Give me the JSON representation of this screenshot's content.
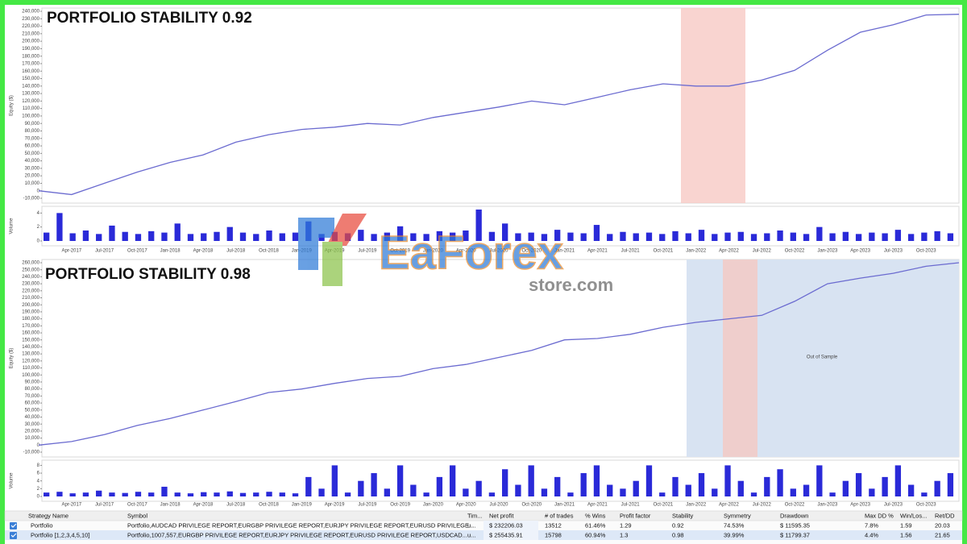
{
  "chart_data": [
    {
      "type": "line",
      "title": "PORTFOLIO STABILITY 0.92",
      "ylabel": "Equity ($)",
      "color": "#6b6bd0",
      "categories": [
        null,
        "Apr-2017",
        "Jul-2017",
        "Oct-2017",
        "Jan-2018",
        "Apr-2018",
        "Jul-2018",
        "Oct-2018",
        "Jan-2019",
        "Apr-2019",
        "Jul-2019",
        "Oct-2019",
        "Jan-2020",
        "Apr-2020",
        "Jul-2020",
        "Oct-2020",
        "Jan-2021",
        "Apr-2021",
        "Jul-2021",
        "Oct-2021",
        "Jan-2022",
        "Apr-2022",
        "Jul-2022",
        "Oct-2022",
        "Jan-2023",
        "Apr-2023",
        "Jul-2023",
        "Oct-2023",
        null
      ],
      "values": [
        0,
        -5000,
        10000,
        25000,
        38000,
        48000,
        65000,
        75000,
        82000,
        85000,
        90000,
        88000,
        98000,
        105000,
        112000,
        120000,
        115000,
        125000,
        135000,
        143000,
        140000,
        140000,
        148000,
        161000,
        188000,
        212000,
        222000,
        235000,
        236000
      ],
      "ylim": [
        -10000,
        240000
      ],
      "yticks": [
        {
          "value": -10000,
          "label": "-10,000"
        },
        0,
        {
          "value": 10000,
          "label": "10,000"
        },
        {
          "value": 20000,
          "label": "20,000"
        },
        {
          "value": 30000,
          "label": "30,000"
        },
        {
          "value": 40000,
          "label": "40,000"
        },
        {
          "value": 50000,
          "label": "50,000"
        },
        {
          "value": 60000,
          "label": "60,000"
        },
        {
          "value": 70000,
          "label": "70,000"
        },
        {
          "value": 80000,
          "label": "80,000"
        },
        {
          "value": 90000,
          "label": "90,000"
        },
        {
          "value": 100000,
          "label": "100,000"
        },
        {
          "value": 110000,
          "label": "110,000"
        },
        {
          "value": 120000,
          "label": "120,000"
        },
        {
          "value": 130000,
          "label": "130,000"
        },
        {
          "value": 140000,
          "label": "140,000"
        },
        {
          "value": 150000,
          "label": "150,000"
        },
        {
          "value": 160000,
          "label": "160,000"
        },
        {
          "value": 170000,
          "label": "170,000"
        },
        {
          "value": 180000,
          "label": "180,000"
        },
        {
          "value": 190000,
          "label": "190,000"
        },
        {
          "value": 200000,
          "label": "200,000"
        },
        {
          "value": 210000,
          "label": "210,000"
        },
        {
          "value": 220000,
          "label": "220,000"
        },
        {
          "value": 230000,
          "label": "230,000"
        },
        {
          "value": 240000,
          "label": "240,000"
        }
      ],
      "grid": false,
      "volume": {
        "type": "bar",
        "ylabel": "Volume",
        "color": "#2a2ad8",
        "ylim": [
          0,
          4.5
        ],
        "yticks": [
          0,
          2,
          4
        ],
        "values": [
          1.2,
          4,
          1.1,
          1.5,
          1,
          2.2,
          1.3,
          1,
          1.4,
          1.2,
          2.5,
          1,
          1.1,
          1.3,
          2,
          1.2,
          1,
          1.5,
          1.1,
          1.2,
          2.8,
          1,
          1.3,
          1.1,
          1.6,
          1,
          1.2,
          2.1,
          1.1,
          1,
          1.4,
          1.2,
          1.5,
          4.5,
          1.3,
          2.5,
          1.1,
          1.2,
          1,
          1.6,
          1.2,
          1.1,
          2.3,
          1,
          1.3,
          1.1,
          1.2,
          1,
          1.4,
          1.1,
          1.6,
          1,
          1.2,
          1.3,
          1,
          1.1,
          1.5,
          1.2,
          1,
          2,
          1.1,
          1.3,
          1,
          1.2,
          1.1,
          1.6,
          1,
          1.2,
          1.4,
          1.1
        ]
      }
    },
    {
      "type": "line",
      "title": "PORTFOLIO STABILITY 0.98",
      "ylabel": "Equity ($)",
      "color": "#6b6bd0",
      "annotation": "Out of Sample",
      "categories": [
        null,
        "Apr-2017",
        "Jul-2017",
        "Oct-2017",
        "Jan-2018",
        "Apr-2018",
        "Jul-2018",
        "Oct-2018",
        "Jan-2019",
        "Apr-2019",
        "Jul-2019",
        "Oct-2019",
        "Jan-2020",
        "Apr-2020",
        "Jul-2020",
        "Oct-2020",
        "Jan-2021",
        "Apr-2021",
        "Jul-2021",
        "Oct-2021",
        "Jan-2022",
        "Apr-2022",
        "Jul-2022",
        "Oct-2022",
        "Jan-2023",
        "Apr-2023",
        "Jul-2023",
        "Oct-2023",
        null
      ],
      "values": [
        0,
        5000,
        15000,
        28000,
        38000,
        50000,
        62000,
        75000,
        80000,
        88000,
        95000,
        98000,
        109000,
        115000,
        125000,
        135000,
        150000,
        152000,
        158000,
        168000,
        175000,
        180000,
        185000,
        205000,
        230000,
        238000,
        245000,
        255000,
        260000
      ],
      "ylim": [
        -10000,
        260000
      ],
      "yticks": [
        {
          "value": -10000,
          "label": "-10,000"
        },
        0,
        {
          "value": 10000,
          "label": "10,000"
        },
        {
          "value": 20000,
          "label": "20,000"
        },
        {
          "value": 30000,
          "label": "30,000"
        },
        {
          "value": 40000,
          "label": "40,000"
        },
        {
          "value": 50000,
          "label": "50,000"
        },
        {
          "value": 60000,
          "label": "60,000"
        },
        {
          "value": 70000,
          "label": "70,000"
        },
        {
          "value": 80000,
          "label": "80,000"
        },
        {
          "value": 90000,
          "label": "90,000"
        },
        {
          "value": 100000,
          "label": "100,000"
        },
        {
          "value": 110000,
          "label": "110,000"
        },
        {
          "value": 120000,
          "label": "120,000"
        },
        {
          "value": 130000,
          "label": "130,000"
        },
        {
          "value": 140000,
          "label": "140,000"
        },
        {
          "value": 150000,
          "label": "150,000"
        },
        {
          "value": 160000,
          "label": "160,000"
        },
        {
          "value": 170000,
          "label": "170,000"
        },
        {
          "value": 180000,
          "label": "180,000"
        },
        {
          "value": 190000,
          "label": "190,000"
        },
        {
          "value": 200000,
          "label": "200,000"
        },
        {
          "value": 210000,
          "label": "210,000"
        },
        {
          "value": 220000,
          "label": "220,000"
        },
        {
          "value": 230000,
          "label": "230,000"
        },
        {
          "value": 240000,
          "label": "240,000"
        },
        {
          "value": 250000,
          "label": "250,000"
        },
        {
          "value": 260000,
          "label": "260,000"
        }
      ],
      "grid": false,
      "volume": {
        "type": "bar",
        "ylabel": "Volume",
        "color": "#2a2ad8",
        "ylim": [
          0,
          8.5
        ],
        "yticks": [
          0,
          2,
          4,
          6,
          8
        ],
        "values": [
          1,
          1.2,
          0.8,
          1,
          1.5,
          1,
          0.9,
          1.2,
          1,
          2.5,
          1,
          0.8,
          1.1,
          1,
          1.3,
          0.9,
          1,
          1.2,
          1,
          0.8,
          5,
          2,
          8,
          1,
          4,
          6,
          2,
          8,
          3,
          1,
          5,
          8,
          2,
          4,
          1,
          7,
          3,
          8,
          2,
          5,
          1,
          6,
          8,
          3,
          2,
          4,
          8,
          1,
          5,
          3,
          6,
          2,
          8,
          4,
          1,
          5,
          7,
          2,
          3,
          8,
          1,
          4,
          6,
          2,
          5,
          8,
          3,
          1,
          4,
          6
        ]
      }
    }
  ],
  "watermark": {
    "name": "EaForex",
    "domain": "store.com"
  },
  "table": {
    "headers": [
      "Strategy Name",
      "Symbol",
      "Tim...",
      "Net profit",
      "# of trades",
      "% Wins",
      "Profit factor",
      "Stability",
      "Symmetry",
      "Drawdown",
      "Max DD %",
      "Win/Los...",
      "Ret/DD"
    ],
    "rows": [
      [
        "Portfolio",
        "Portfolio,AUDCAD PRIVILEGE REPORT,EURGBP PRIVILEGE REPORT,EURJPY PRIVILEGE REPORT,EURUSD PRIVILEGE...",
        "u...",
        "$ 232206.03",
        "13512",
        "61.46%",
        "1.29",
        "0.92",
        "74.53%",
        "$ 11595.35",
        "7.8%",
        "1.59",
        "20.03"
      ],
      [
        "Portfolio [1,2,3,4,5,10]",
        "Portfolio,1007,557,EURGBP PRIVILEGE REPORT,EURJPY PRIVILEGE REPORT,EURUSD PRIVILEGE REPORT,USDCAD...",
        "u...",
        "$ 255435.91",
        "15798",
        "60.94%",
        "1.3",
        "0.98",
        "39.99%",
        "$ 11799.37",
        "4.4%",
        "1.56",
        "21.65"
      ]
    ]
  }
}
